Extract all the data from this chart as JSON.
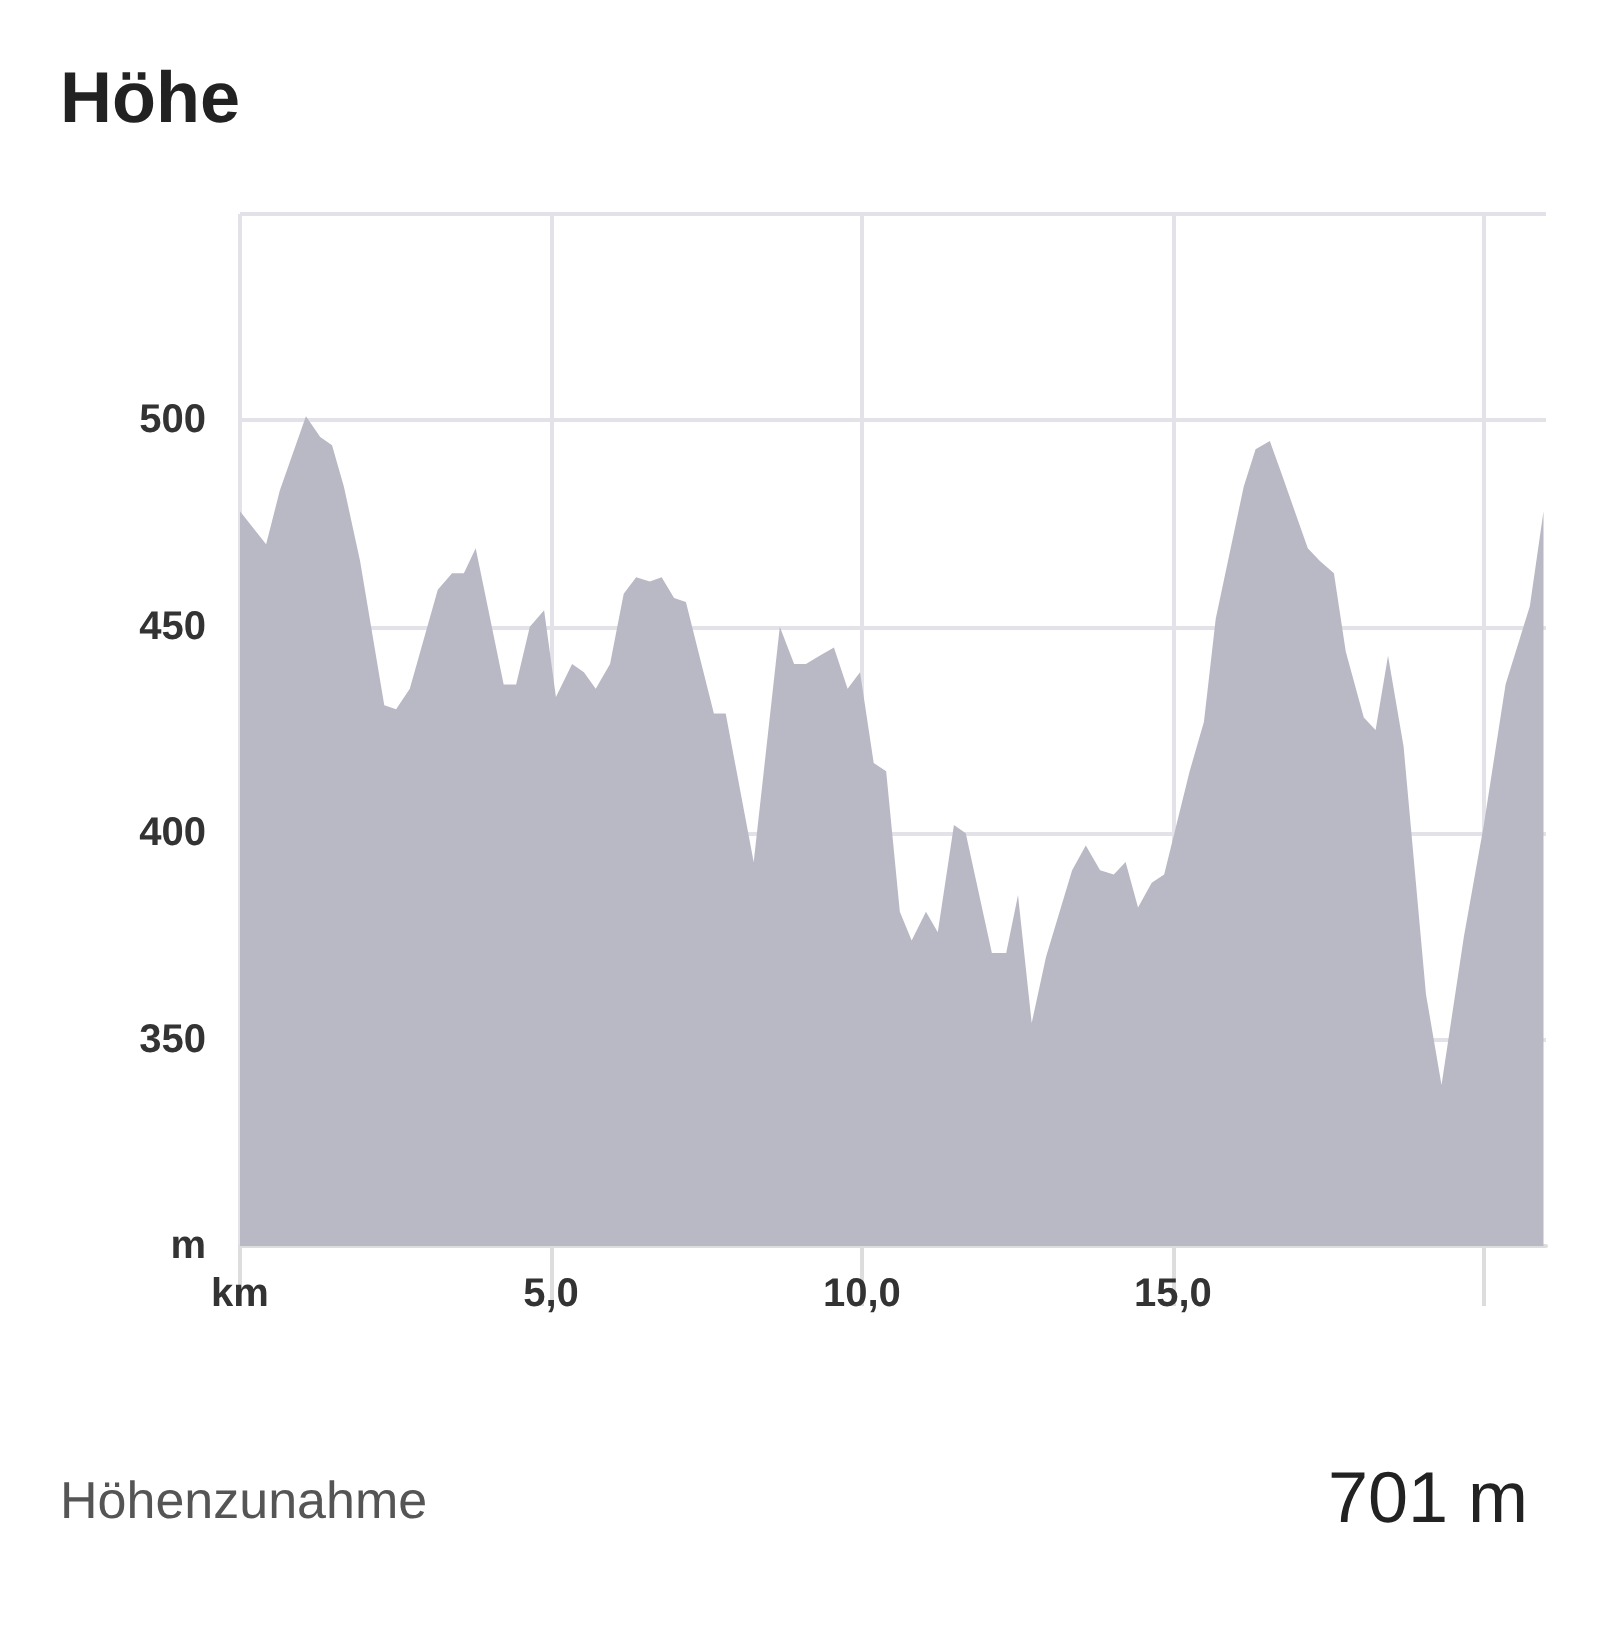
{
  "chart_data": {
    "type": "area",
    "title": "Höhe",
    "x": [
      0,
      0.42,
      0.64,
      1.06,
      1.29,
      1.48,
      1.67,
      1.93,
      2.32,
      2.51,
      2.73,
      3.18,
      3.41,
      3.6,
      3.79,
      4.24,
      4.44,
      4.66,
      4.89,
      5.08,
      5.34,
      5.53,
      5.72,
      5.95,
      6.17,
      6.37,
      6.59,
      6.78,
      6.98,
      7.17,
      7.62,
      7.81,
      8.26,
      8.68,
      8.91,
      9.1,
      9.32,
      9.55,
      9.77,
      9.97,
      10.19,
      10.39,
      10.61,
      10.8,
      11.03,
      11.22,
      11.48,
      11.67,
      12.09,
      12.32,
      12.51,
      12.73,
      12.96,
      13.38,
      13.6,
      13.83,
      14.05,
      14.24,
      14.44,
      14.66,
      14.86,
      15.27,
      15.5,
      15.69,
      16.14,
      16.33,
      16.56,
      16.75,
      17.17,
      17.36,
      17.59,
      17.78,
      18.07,
      18.26,
      18.46,
      18.71,
      19.07,
      19.32,
      19.68,
      20.0,
      20.35,
      20.74,
      20.96
    ],
    "series": [
      {
        "color": "#b9b9c6",
        "values": [
          478,
          470,
          483,
          501,
          496,
          494,
          484,
          466,
          431,
          430,
          435,
          459,
          463,
          463,
          469,
          436,
          436,
          450,
          454,
          433,
          441,
          439,
          435,
          441,
          458,
          462,
          461,
          462,
          457,
          456,
          429,
          429,
          393,
          450,
          441,
          441,
          443,
          445,
          435,
          439,
          417,
          415,
          381,
          374,
          381,
          376,
          402,
          400,
          371,
          371,
          385,
          354,
          370,
          391,
          397,
          391,
          390,
          393,
          382,
          388,
          390,
          415,
          427,
          452,
          484,
          493,
          495,
          487,
          469,
          466,
          463,
          444,
          428,
          425,
          443,
          421,
          361,
          339,
          375,
          402,
          436,
          455,
          478
        ]
      }
    ],
    "xlim": [
      0,
      21
    ],
    "xticks": [
      {
        "value": 0,
        "label": "km"
      },
      {
        "value": 5,
        "label": "5,0"
      },
      {
        "value": 10,
        "label": "10,0"
      },
      {
        "value": 15,
        "label": "15,0"
      },
      {
        "value": 20,
        "label": null
      }
    ],
    "ylim": [
      300,
      550
    ],
    "yticks": [
      {
        "value": 300,
        "label": "m"
      },
      350,
      400,
      450,
      500,
      {
        "value": 550,
        "label": null
      }
    ],
    "grid": true,
    "annotations": [
      "Höhenzunahme",
      "701 m"
    ]
  }
}
